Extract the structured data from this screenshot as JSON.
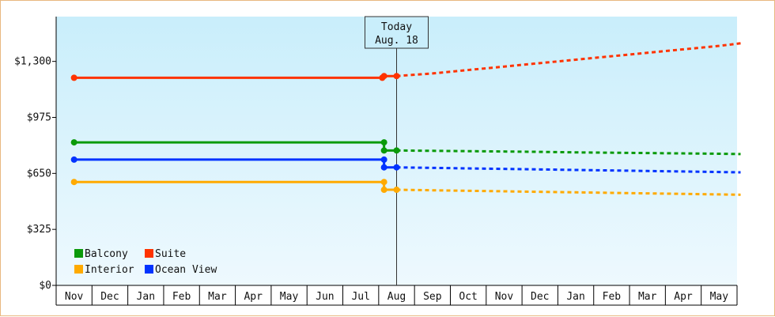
{
  "chart_data": {
    "type": "line",
    "title": "",
    "xlabel": "",
    "ylabel": "",
    "x": [
      "Nov",
      "Dec",
      "Jan",
      "Feb",
      "Mar",
      "Apr",
      "May",
      "Jun",
      "Jul",
      "Aug",
      "Sep",
      "Oct",
      "Nov",
      "Dec",
      "Jan",
      "Feb",
      "Mar",
      "Apr",
      "May"
    ],
    "y_ticks": [
      "$0",
      "$325",
      "$650",
      "$975",
      "$1,300"
    ],
    "ylim": [
      0,
      1560
    ],
    "today_marker": {
      "line1": "Today",
      "line2": "Aug. 18"
    },
    "legend": {
      "placement": "bottom-left"
    },
    "grid": false,
    "series": [
      {
        "name": "Suite",
        "color": "#ff3300",
        "historical": [
          [
            0,
            1205
          ],
          [
            8.6,
            1205
          ],
          [
            8.65,
            1215
          ],
          [
            9.0,
            1215
          ]
        ],
        "forecast": [
          [
            9.0,
            1215
          ],
          [
            10,
            1230
          ],
          [
            11,
            1250
          ],
          [
            12,
            1270
          ],
          [
            13,
            1290
          ],
          [
            14,
            1310
          ],
          [
            15,
            1330
          ],
          [
            16,
            1350
          ],
          [
            17,
            1370
          ],
          [
            18,
            1390
          ],
          [
            18.6,
            1405
          ]
        ]
      },
      {
        "name": "Balcony",
        "color": "#0a9a0a",
        "historical": [
          [
            0,
            830
          ],
          [
            8.65,
            830
          ],
          [
            8.65,
            783
          ],
          [
            9.0,
            783
          ]
        ],
        "forecast": [
          [
            9.0,
            783
          ],
          [
            10,
            781
          ],
          [
            11,
            779
          ],
          [
            12,
            777
          ],
          [
            13,
            775
          ],
          [
            14,
            772
          ],
          [
            15,
            770
          ],
          [
            16,
            768
          ],
          [
            17,
            766
          ],
          [
            18,
            764
          ],
          [
            18.6,
            762
          ]
        ]
      },
      {
        "name": "Ocean View",
        "color": "#0033ff",
        "historical": [
          [
            0,
            730
          ],
          [
            8.65,
            730
          ],
          [
            8.65,
            685
          ],
          [
            9.0,
            685
          ]
        ],
        "forecast": [
          [
            9.0,
            685
          ],
          [
            10,
            682
          ],
          [
            11,
            679
          ],
          [
            12,
            676
          ],
          [
            13,
            673
          ],
          [
            14,
            670
          ],
          [
            15,
            667
          ],
          [
            16,
            664
          ],
          [
            17,
            661
          ],
          [
            18,
            658
          ],
          [
            18.6,
            656
          ]
        ]
      },
      {
        "name": "Interior",
        "color": "#ffaa00",
        "historical": [
          [
            0,
            600
          ],
          [
            8.65,
            600
          ],
          [
            8.65,
            555
          ],
          [
            9.0,
            555
          ]
        ],
        "forecast": [
          [
            9.0,
            555
          ],
          [
            10,
            552
          ],
          [
            11,
            549
          ],
          [
            12,
            546
          ],
          [
            13,
            543
          ],
          [
            14,
            540
          ],
          [
            15,
            537
          ],
          [
            16,
            534
          ],
          [
            17,
            531
          ],
          [
            18,
            528
          ],
          [
            18.6,
            526
          ]
        ]
      }
    ]
  }
}
